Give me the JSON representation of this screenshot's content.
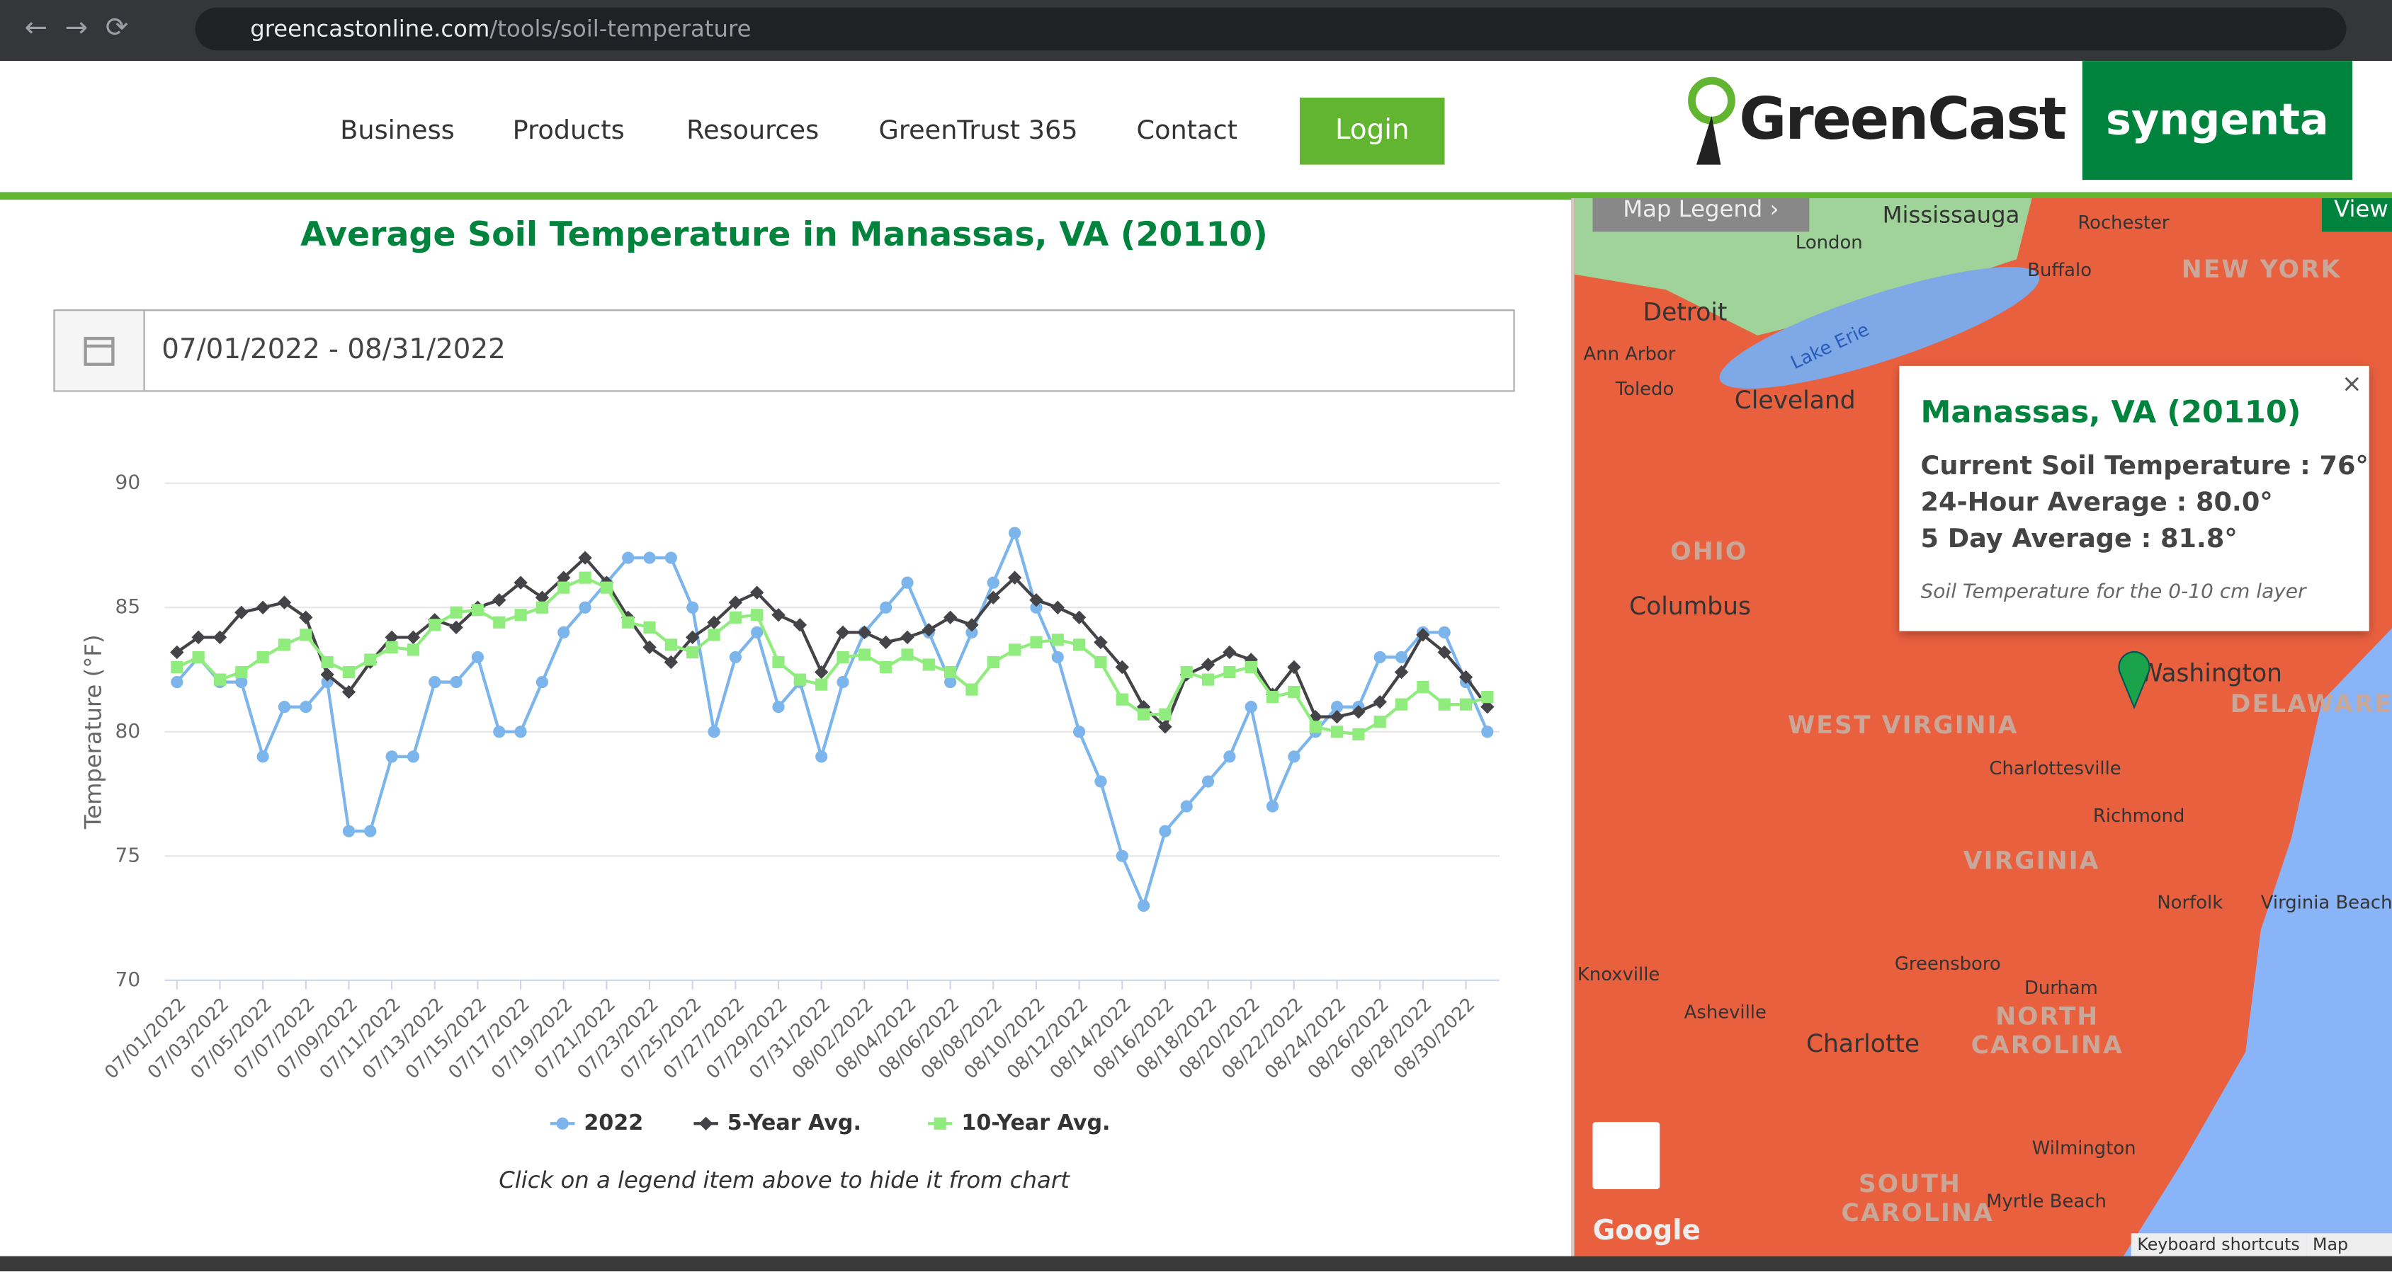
{
  "browser": {
    "url_domain": "greencastonline.com",
    "url_path": "/tools/soil-temperature"
  },
  "nav": {
    "items": [
      "Business",
      "Products",
      "Resources",
      "GreenTrust 365",
      "Contact"
    ],
    "login": "Login"
  },
  "logo": {
    "greencast": "GreenCast",
    "syngenta": "syngenta"
  },
  "date_range": "07/01/2022 - 08/31/2022",
  "chart_data": {
    "type": "line",
    "title": "Average Soil Temperature in Manassas, VA (20110)",
    "y_label": "Temperature (°F)",
    "categories": [
      "07/01/2022",
      null,
      "07/03/2022",
      null,
      "07/05/2022",
      null,
      "07/07/2022",
      null,
      "07/09/2022",
      null,
      "07/11/2022",
      null,
      "07/13/2022",
      null,
      "07/15/2022",
      null,
      "07/17/2022",
      null,
      "07/19/2022",
      null,
      "07/21/2022",
      null,
      "07/23/2022",
      null,
      "07/25/2022",
      null,
      "07/27/2022",
      null,
      "07/29/2022",
      null,
      "07/31/2022",
      null,
      "08/02/2022",
      null,
      "08/04/2022",
      null,
      "08/06/2022",
      null,
      "08/08/2022",
      null,
      "08/10/2022",
      null,
      "08/12/2022",
      null,
      "08/14/2022",
      null,
      "08/16/2022",
      null,
      "08/18/2022",
      null,
      "08/20/2022",
      null,
      "08/22/2022",
      null,
      "08/24/2022",
      null,
      "08/26/2022",
      null,
      "08/28/2022",
      null,
      "08/30/2022",
      null
    ],
    "series": [
      {
        "name": "2022",
        "color": "#7cb5ec",
        "marker": "circle",
        "values": [
          82,
          83,
          82,
          82,
          79,
          81,
          81,
          82,
          76,
          76,
          79,
          79,
          82,
          82,
          83,
          80,
          80,
          82,
          84,
          85,
          86,
          87,
          87,
          87,
          85,
          80,
          83,
          84,
          81,
          82,
          79,
          82,
          84,
          85,
          86,
          84,
          82,
          84,
          86,
          88,
          85,
          83,
          80,
          78,
          75,
          73,
          76,
          77,
          78,
          79,
          81,
          77,
          79,
          80,
          81,
          81,
          83,
          83,
          84,
          84,
          82,
          80
        ]
      },
      {
        "name": "5-Year Avg.",
        "color": "#434348",
        "marker": "diamond",
        "values": [
          83.2,
          83.8,
          83.8,
          84.8,
          85.0,
          85.2,
          84.6,
          82.3,
          81.6,
          82.8,
          83.8,
          83.8,
          84.5,
          84.2,
          85.0,
          85.3,
          86.0,
          85.4,
          86.2,
          87.0,
          86.0,
          84.6,
          83.4,
          82.8,
          83.8,
          84.4,
          85.2,
          85.6,
          84.7,
          84.3,
          82.4,
          84.0,
          84.0,
          83.6,
          83.8,
          84.1,
          84.6,
          84.3,
          85.4,
          86.2,
          85.3,
          85.0,
          84.6,
          83.6,
          82.6,
          81.0,
          80.2,
          82.3,
          82.7,
          83.2,
          82.9,
          81.5,
          82.6,
          80.6,
          80.6,
          80.8,
          81.2,
          82.4,
          83.9,
          83.2,
          82.2,
          81.0
        ]
      },
      {
        "name": "10-Year Avg.",
        "color": "#90ed7d",
        "marker": "square",
        "values": [
          82.6,
          83.0,
          82.1,
          82.4,
          83.0,
          83.5,
          83.9,
          82.8,
          82.4,
          82.9,
          83.4,
          83.3,
          84.3,
          84.8,
          84.9,
          84.4,
          84.7,
          85.0,
          85.8,
          86.2,
          85.8,
          84.4,
          84.2,
          83.5,
          83.2,
          83.9,
          84.6,
          84.7,
          82.8,
          82.1,
          81.9,
          83.0,
          83.1,
          82.6,
          83.1,
          82.7,
          82.4,
          81.7,
          82.8,
          83.3,
          83.6,
          83.7,
          83.5,
          82.8,
          81.3,
          80.7,
          80.7,
          82.4,
          82.1,
          82.4,
          82.6,
          81.4,
          81.6,
          80.2,
          80.0,
          79.9,
          80.4,
          81.1,
          81.8,
          81.1,
          81.1,
          81.4
        ]
      }
    ],
    "ylim": [
      70,
      90
    ],
    "yticks": [
      70,
      75,
      80,
      85,
      90
    ],
    "grid": true,
    "legend_position": "bottom",
    "note": "Click on a legend item above to hide it from chart"
  },
  "map": {
    "legend_button": "Map Legend ›",
    "view_button": "View",
    "popup": {
      "title": "Manassas, VA (20110)",
      "lines": [
        "Current Soil Temperature : 76°",
        "24-Hour Average : 80.0°",
        "5 Day Average : 81.8°"
      ],
      "note": "Soil Temperature for the 0-10 cm layer",
      "close": "×"
    },
    "places": [
      "Mississauga",
      "London",
      "Rochester",
      "Buffalo",
      "NEW YORK",
      "Detroit",
      "Ann Arbor",
      "Toledo",
      "Cleveland",
      "Lake Erie",
      "OHIO",
      "Columbus",
      "WEST VIRGINIA",
      "Washington",
      "DELAWARE",
      "Charlottesville",
      "Richmond",
      "VIRGINIA",
      "Norfolk",
      "Virginia Beach",
      "Greensboro",
      "Durham",
      "NORTH CAROLINA",
      "Knoxville",
      "Asheville",
      "Charlotte",
      "Wilmington",
      "SOUTH CAROLINA",
      "Myrtle Beach"
    ],
    "google": "Google",
    "footer": [
      "Keyboard shortcuts",
      "Map data ©"
    ]
  }
}
